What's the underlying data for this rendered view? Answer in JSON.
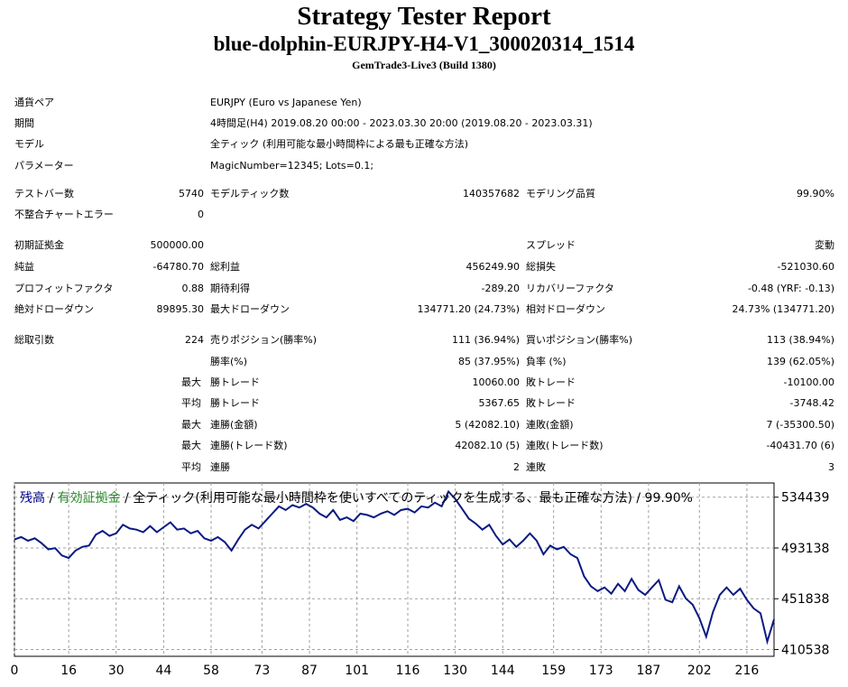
{
  "report": {
    "title": "Strategy Tester Report",
    "subtitle": "blue-dolphin-EURJPY-H4-V1_300020314_1514",
    "build": "GemTrade3-Live3 (Build 1380)"
  },
  "settings": [
    {
      "label": "通貨ペア",
      "value": "EURJPY (Euro vs Japanese Yen)"
    },
    {
      "label": "期間",
      "value": "4時間足(H4) 2019.08.20 00:00 - 2023.03.30 20:00 (2019.08.20 - 2023.03.31)"
    },
    {
      "label": "モデル",
      "value": "全ティック (利用可能な最小時間枠による最も正確な方法)"
    },
    {
      "label": "パラメーター",
      "value": "MagicNumber=12345; Lots=0.1;"
    }
  ],
  "stats": {
    "test_bars": {
      "label": "テストバー数",
      "value": "5740"
    },
    "model_ticks": {
      "label": "モデルティック数",
      "value": "140357682"
    },
    "model_quality": {
      "label": "モデリング品質",
      "value": "99.90%"
    },
    "mismatch_errors": {
      "label": "不整合チャートエラー",
      "value": "0"
    },
    "initial_deposit": {
      "label": "初期証拠金",
      "value": "500000.00"
    },
    "spread": {
      "label": "スプレッド",
      "value": "変動"
    },
    "net_profit": {
      "label": "純益",
      "value": "-64780.70"
    },
    "gross_profit": {
      "label": "総利益",
      "value": "456249.90"
    },
    "gross_loss": {
      "label": "総損失",
      "value": "-521030.60"
    },
    "profit_factor": {
      "label": "プロフィットファクタ",
      "value": "0.88"
    },
    "expected_payoff": {
      "label": "期待利得",
      "value": "-289.20"
    },
    "recovery_factor": {
      "label": "リカバリーファクタ",
      "value": "-0.48 (YRF: -0.13)"
    },
    "abs_drawdown": {
      "label": "絶対ドローダウン",
      "value": "89895.30"
    },
    "max_drawdown": {
      "label": "最大ドローダウン",
      "value": "134771.20 (24.73%)"
    },
    "rel_drawdown": {
      "label": "相対ドローダウン",
      "value": "24.73% (134771.20)"
    },
    "total_trades": {
      "label": "総取引数",
      "value": "224"
    },
    "short_positions": {
      "label": "売りポジション(勝率%)",
      "value": "111 (36.94%)"
    },
    "long_positions": {
      "label": "買いポジション(勝率%)",
      "value": "113 (38.94%)"
    },
    "win_rate": {
      "label": "勝率(%)",
      "value": "85 (37.95%)"
    },
    "loss_rate": {
      "label": "負率 (%)",
      "value": "139 (62.05%)"
    },
    "largest_win": {
      "prefix": "最大",
      "label": "勝トレード",
      "value": "10060.00"
    },
    "largest_loss": {
      "label": "敗トレード",
      "value": "-10100.00"
    },
    "avg_win": {
      "prefix": "平均",
      "label": "勝トレード",
      "value": "5367.65"
    },
    "avg_loss": {
      "label": "敗トレード",
      "value": "-3748.42"
    },
    "max_consec_wins_amt": {
      "prefix": "最大",
      "label": "連勝(金額)",
      "value": "5 (42082.10)"
    },
    "max_consec_losses_amt": {
      "label": "連敗(金額)",
      "value": "7 (-35300.50)"
    },
    "max_consec_wins_cnt": {
      "prefix": "最大",
      "label": "連勝(トレード数)",
      "value": "42082.10 (5)"
    },
    "max_consec_losses_cnt": {
      "label": "連敗(トレード数)",
      "value": "-40431.70 (6)"
    },
    "avg_consec_wins": {
      "prefix": "平均",
      "label": "連勝",
      "value": "2"
    },
    "avg_consec_losses": {
      "label": "連敗",
      "value": "3"
    }
  },
  "chart_data": {
    "type": "line",
    "legend": {
      "balance": "残高",
      "sep1": " / ",
      "equity": "有効証拠金",
      "rest": " / 全ティック(利用可能な最小時間枠を使いすべてのティックを生成する、最も正確な方法) / 99.90%"
    },
    "colors": {
      "line": "#0a1a82",
      "balance_label": "#00008b",
      "equity_label": "#2e8b2e",
      "grid": "#a0a0a0"
    },
    "x_ticks": [
      0,
      16,
      30,
      44,
      58,
      73,
      87,
      101,
      116,
      130,
      144,
      159,
      173,
      187,
      202,
      216
    ],
    "y_ticks": [
      534439,
      493138,
      451838,
      410538
    ],
    "xlim": [
      0,
      224
    ],
    "ylim": [
      405000,
      546000
    ],
    "grid": true,
    "series": [
      {
        "x": [
          0,
          2,
          4,
          6,
          8,
          10,
          12,
          14,
          16,
          18,
          20,
          22,
          24,
          26,
          28,
          30,
          32,
          34,
          36,
          38,
          40,
          42,
          44,
          46,
          48,
          50,
          52,
          54,
          56,
          58,
          60,
          62,
          64,
          66,
          68,
          70,
          72,
          74,
          76,
          78,
          80,
          82,
          84,
          86,
          88,
          90,
          92,
          94,
          96,
          98,
          100,
          102,
          104,
          106,
          108,
          110,
          112,
          114,
          116,
          118,
          120,
          122,
          124,
          126,
          128,
          130,
          132,
          134,
          136,
          138,
          140,
          142,
          144,
          146,
          148,
          150,
          152,
          154,
          156,
          158,
          160,
          162,
          164,
          166,
          168,
          170,
          172,
          174,
          176,
          178,
          180,
          182,
          184,
          186,
          188,
          190,
          192,
          194,
          196,
          198,
          200,
          202,
          204,
          206,
          208,
          210,
          212,
          214,
          216,
          218,
          220,
          222,
          224
        ],
        "y": [
          500000,
          502000,
          499000,
          501000,
          497000,
          492000,
          493000,
          487000,
          485000,
          491000,
          494000,
          495000,
          504000,
          507000,
          503000,
          505000,
          512000,
          509000,
          508000,
          506000,
          511000,
          506000,
          510000,
          514000,
          508000,
          509000,
          505000,
          507000,
          501000,
          499000,
          502000,
          498000,
          491000,
          500000,
          508000,
          512000,
          509000,
          515000,
          521000,
          527000,
          524000,
          528000,
          526000,
          529000,
          526000,
          521000,
          518000,
          524000,
          516000,
          518000,
          515000,
          521000,
          520000,
          518000,
          521000,
          523000,
          520000,
          524000,
          525000,
          522000,
          527000,
          526000,
          530000,
          527000,
          539000,
          533000,
          525000,
          517000,
          513000,
          508000,
          512000,
          503000,
          496000,
          500000,
          494000,
          499000,
          505000,
          499000,
          488000,
          495000,
          492000,
          494000,
          488000,
          485000,
          470000,
          462000,
          458000,
          461000,
          456000,
          464000,
          458000,
          468000,
          459000,
          455000,
          461000,
          467000,
          451000,
          449000,
          462000,
          452000,
          447000,
          436000,
          421000,
          441000,
          455000,
          461000,
          455000,
          460000,
          451000,
          444000,
          440000,
          417000,
          435000
        ]
      }
    ]
  }
}
